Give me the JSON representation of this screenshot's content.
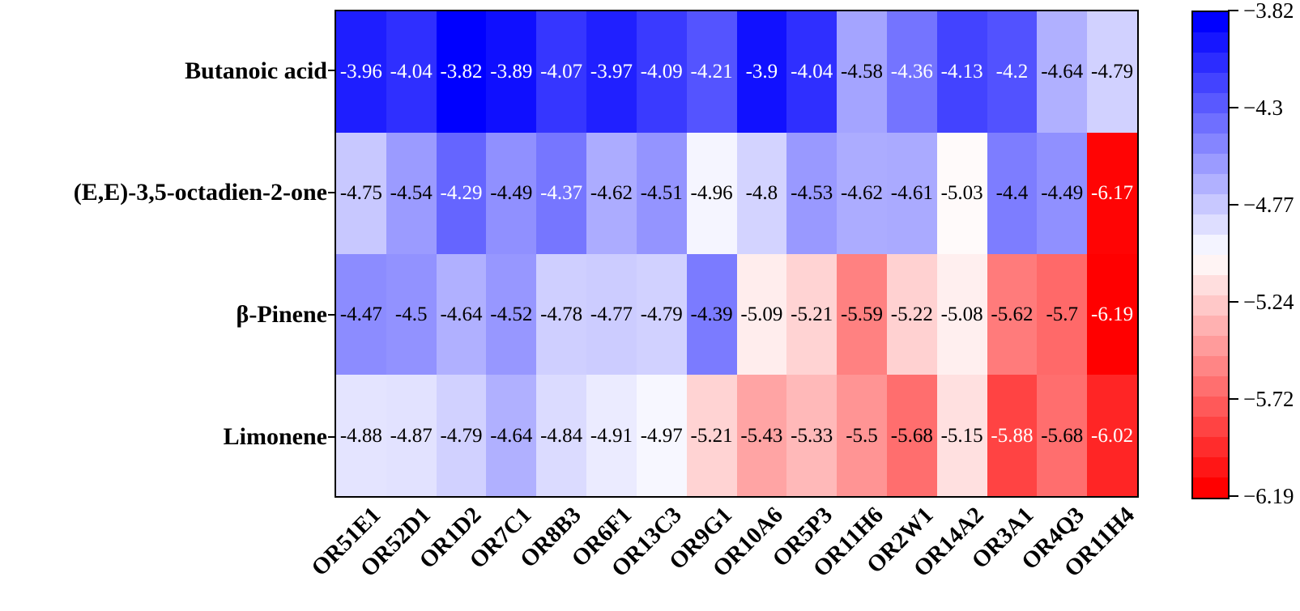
{
  "figure": {
    "background_color": "#ffffff",
    "description": "Annotated heatmap of docking scores for four volatile compounds against sixteen olfactory receptors, with a discrete blue-white-red colorbar on the right"
  },
  "chart_data": {
    "type": "heatmap",
    "title": "",
    "xlabel": "",
    "ylabel": "",
    "columns": [
      "OR51E1",
      "OR52D1",
      "OR1D2",
      "OR7C1",
      "OR8B3",
      "OR6F1",
      "OR13C3",
      "OR9G1",
      "OR10A6",
      "OR5P3",
      "OR11H6",
      "OR2W1",
      "OR14A2",
      "OR3A1",
      "OR4Q3",
      "OR11H4"
    ],
    "rows": [
      {
        "name": "Butanoic acid",
        "values": [
          -3.96,
          -4.04,
          -3.82,
          -3.89,
          -4.07,
          -3.97,
          -4.09,
          -4.21,
          -3.9,
          -4.04,
          -4.58,
          -4.36,
          -4.13,
          -4.2,
          -4.64,
          -4.79
        ]
      },
      {
        "name": "(E,E)-3,5-octadien-2-one",
        "values": [
          -4.75,
          -4.54,
          -4.29,
          -4.49,
          -4.37,
          -4.62,
          -4.51,
          -4.96,
          -4.8,
          -4.53,
          -4.62,
          -4.61,
          -5.03,
          -4.4,
          -4.49,
          -6.17
        ]
      },
      {
        "name": "β-Pinene",
        "values": [
          -4.47,
          -4.5,
          -4.64,
          -4.52,
          -4.78,
          -4.77,
          -4.79,
          -4.39,
          -5.09,
          -5.21,
          -5.59,
          -5.22,
          -5.08,
          -5.62,
          -5.7,
          -6.19
        ]
      },
      {
        "name": "Limonene",
        "values": [
          -4.88,
          -4.87,
          -4.79,
          -4.64,
          -4.84,
          -4.91,
          -4.97,
          -5.21,
          -5.43,
          -5.33,
          -5.5,
          -5.68,
          -5.15,
          -5.88,
          -5.68,
          -6.02
        ]
      }
    ],
    "value_range": {
      "vmax": -3.82,
      "vmin": -6.19
    },
    "annotations": "every cell is labeled with its numeric value; dark-colored cells use white text, light cells use black text",
    "colormap": {
      "style": "blue-white-red",
      "high_color": "#0000ff",
      "mid_color": "#ffffff",
      "low_color": "#ff0000",
      "discrete_levels": 24
    },
    "colorbar": {
      "position": "right",
      "tick_labels": [
        "−3.82",
        "−4.3",
        "−4.77",
        "−5.24",
        "−5.72",
        "−6.19"
      ],
      "tick_values": [
        -3.82,
        -4.3,
        -4.77,
        -5.24,
        -5.72,
        -6.19
      ]
    },
    "grid": false,
    "legend_position": "none",
    "x_tick_rotation_deg": 45
  }
}
